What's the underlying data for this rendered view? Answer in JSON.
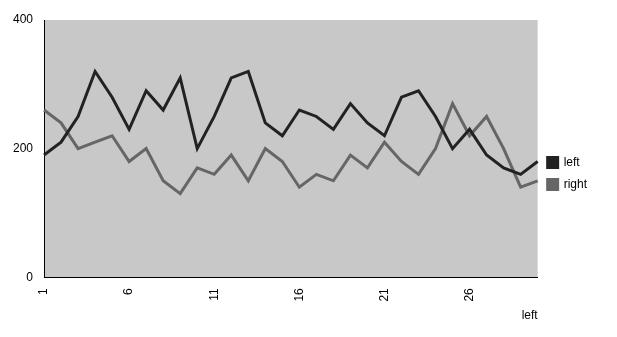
{
  "chart_data": {
    "type": "line",
    "xlabel": "left",
    "categories": [
      "1",
      null,
      null,
      null,
      null,
      "6",
      null,
      null,
      null,
      null,
      "11",
      null,
      null,
      null,
      null,
      "16",
      null,
      null,
      null,
      null,
      "21",
      null,
      null,
      null,
      null,
      "26",
      null,
      null,
      null,
      null
    ],
    "series": [
      {
        "name": "left",
        "color": "#222222",
        "values": [
          190,
          210,
          250,
          320,
          280,
          230,
          290,
          260,
          310,
          200,
          250,
          310,
          320,
          240,
          220,
          260,
          250,
          230,
          270,
          240,
          220,
          280,
          290,
          250,
          200,
          230,
          190,
          170,
          160,
          180
        ]
      },
      {
        "name": "right",
        "color": "#666666",
        "values": [
          260,
          240,
          200,
          210,
          220,
          180,
          200,
          150,
          130,
          170,
          160,
          190,
          150,
          200,
          180,
          140,
          160,
          150,
          190,
          170,
          210,
          180,
          160,
          200,
          270,
          220,
          250,
          200,
          140,
          150
        ]
      }
    ],
    "ylim": [
      0,
      400
    ],
    "yticks": [
      0,
      200,
      400
    ],
    "grid": false,
    "legend": "right"
  }
}
